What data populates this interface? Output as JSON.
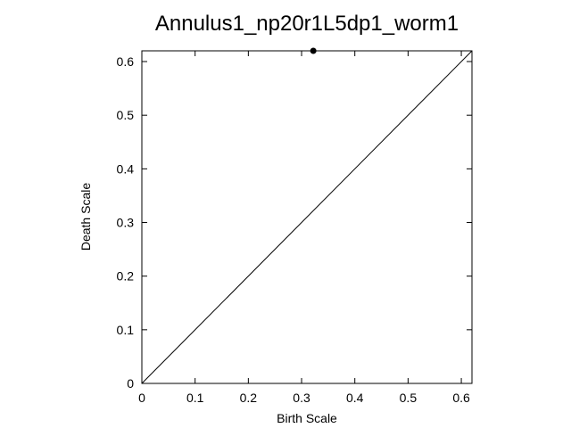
{
  "chart_data": {
    "type": "scatter",
    "title": "Annulus1_np20r1L5dp1_worm1",
    "xlabel": "Birth Scale",
    "ylabel": "Death Scale",
    "xlim": [
      0,
      0.62
    ],
    "ylim": [
      0,
      0.62
    ],
    "xticks": [
      "0",
      "0.1",
      "0.2",
      "0.3",
      "0.4",
      "0.5",
      "0.6"
    ],
    "yticks": [
      "0",
      "0.1",
      "0.2",
      "0.3",
      "0.4",
      "0.5",
      "0.6"
    ],
    "diagonal": true,
    "grid": false,
    "series": [
      {
        "points": [
          {
            "x": 0.322,
            "y": 0.62
          }
        ]
      }
    ],
    "point_color": "#000000",
    "line_color": "#000000"
  }
}
